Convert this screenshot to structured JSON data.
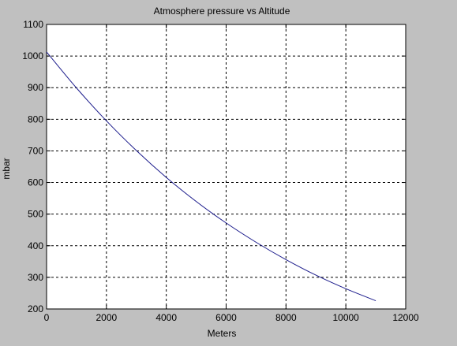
{
  "colors": {
    "figure_background": "#c0c0c0",
    "axes_background": "#ffffff",
    "line": "#1c1c8c",
    "grid": "#000000",
    "axis": "#000000",
    "text": "#000000"
  },
  "chart_data": {
    "type": "line",
    "title": "Atmosphere pressure vs Altitude",
    "xlabel": "Meters",
    "ylabel": "mbar",
    "xlim": [
      0,
      12000
    ],
    "ylim": [
      200,
      1100
    ],
    "x_ticks": [
      "0",
      "2000",
      "4000",
      "6000",
      "8000",
      "10000",
      "12000"
    ],
    "y_ticks": [
      "200",
      "300",
      "400",
      "500",
      "600",
      "700",
      "800",
      "900",
      "1000",
      "1100"
    ],
    "grid": true,
    "legend": "none",
    "series": [
      {
        "x": [
          0,
          1000,
          2000,
          3000,
          4000,
          5000,
          6000,
          7000,
          8000,
          9000,
          10000,
          11000
        ],
        "y": [
          1013,
          899,
          795,
          701,
          616,
          540,
          472,
          411,
          356,
          307,
          264,
          226
        ]
      }
    ]
  }
}
